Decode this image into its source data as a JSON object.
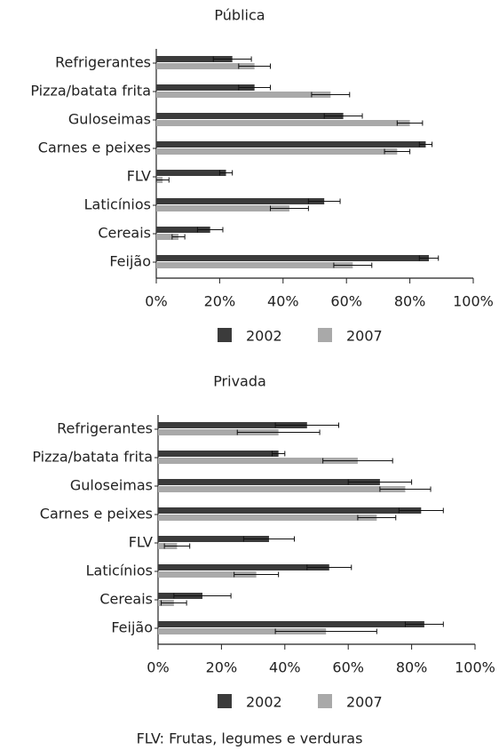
{
  "chart_data": [
    {
      "type": "bar",
      "orientation": "horizontal",
      "title": "Pública",
      "categories": [
        "Refrigerantes",
        "Pizza/batata frita",
        "Guloseimas",
        "Carnes e peixes",
        "FLV",
        "Laticínios",
        "Cereais",
        "Feijão"
      ],
      "series": [
        {
          "name": "2002",
          "color": "#3b3b3b",
          "values": [
            24,
            31,
            59,
            85,
            22,
            53,
            17,
            86
          ],
          "errors": [
            6,
            5,
            6,
            2,
            2,
            5,
            4,
            3
          ]
        },
        {
          "name": "2007",
          "color": "#a9a9a9",
          "values": [
            31,
            55,
            80,
            76,
            2,
            42,
            7,
            62
          ],
          "errors": [
            5,
            6,
            4,
            4,
            2,
            6,
            2,
            6
          ]
        }
      ],
      "xlim": [
        0,
        100
      ],
      "xticks": [
        {
          "value": 0,
          "label": "0%"
        },
        {
          "value": 20,
          "label": "20%"
        },
        {
          "value": 40,
          "label": "40%"
        },
        {
          "value": 60,
          "label": "60%"
        },
        {
          "value": 80,
          "label": "80%"
        },
        {
          "value": 100,
          "label": "100%"
        }
      ]
    },
    {
      "type": "bar",
      "orientation": "horizontal",
      "title": "Privada",
      "categories": [
        "Refrigerantes",
        "Pizza/batata frita",
        "Guloseimas",
        "Carnes e peixes",
        "FLV",
        "Laticínios",
        "Cereais",
        "Feijão"
      ],
      "series": [
        {
          "name": "2002",
          "color": "#3b3b3b",
          "values": [
            47,
            38,
            70,
            83,
            35,
            54,
            14,
            84
          ],
          "errors": [
            10,
            2,
            10,
            7,
            8,
            7,
            9,
            6
          ]
        },
        {
          "name": "2007",
          "color": "#a9a9a9",
          "values": [
            38,
            63,
            78,
            69,
            6,
            31,
            5,
            53
          ],
          "errors": [
            13,
            11,
            8,
            6,
            4,
            7,
            4,
            16
          ]
        }
      ],
      "xlim": [
        0,
        100
      ],
      "xticks": [
        {
          "value": 0,
          "label": "0%"
        },
        {
          "value": 20,
          "label": "20%"
        },
        {
          "value": 40,
          "label": "40%"
        },
        {
          "value": 60,
          "label": "60%"
        },
        {
          "value": 80,
          "label": "80%"
        },
        {
          "value": 100,
          "label": "100%"
        }
      ]
    }
  ],
  "footnote": "FLV: Frutas, legumes e verduras"
}
